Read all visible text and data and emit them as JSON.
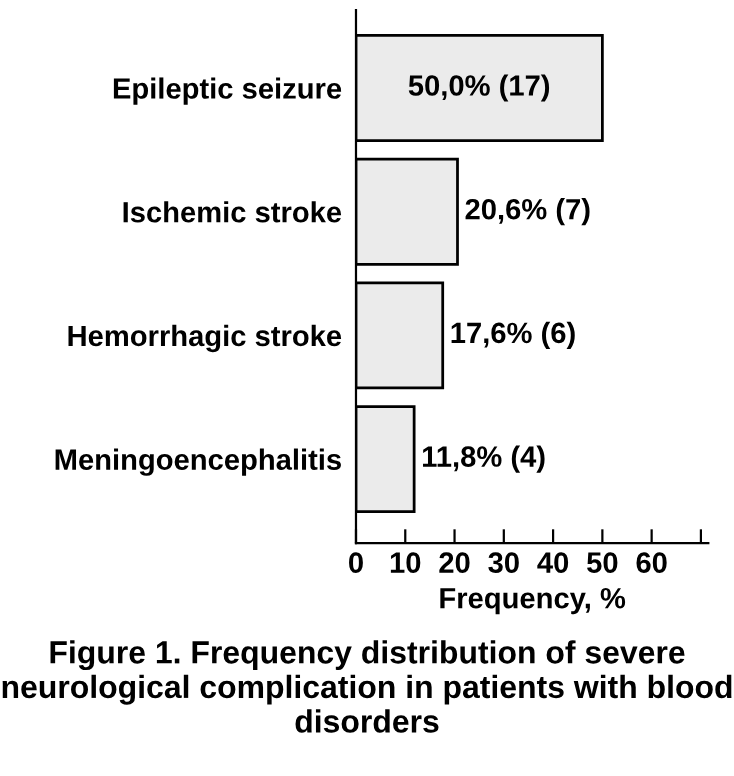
{
  "chart_data": {
    "type": "bar",
    "orientation": "horizontal",
    "categories": [
      "Epileptic seizure",
      "Ischemic stroke",
      "Hemorrhagic stroke",
      "Meningoencephalitis"
    ],
    "values": [
      50.0,
      20.6,
      17.6,
      11.8
    ],
    "value_labels": [
      "50,0% (17)",
      "20,6% (7)",
      "17,6% (6)",
      "11,8% (4)"
    ],
    "color": "#ebebeb",
    "xlabel": "Frequency, %",
    "xlim": [
      0,
      71.5
    ],
    "xticks": [
      0,
      10,
      20,
      30,
      40,
      50,
      60,
      {
        "value": 70,
        "label": null
      }
    ],
    "grid": false,
    "legend": false,
    "annotations": [
      "Figure 1. Frequency distribution of severe neurological complication in patients with blood disorders"
    ]
  }
}
